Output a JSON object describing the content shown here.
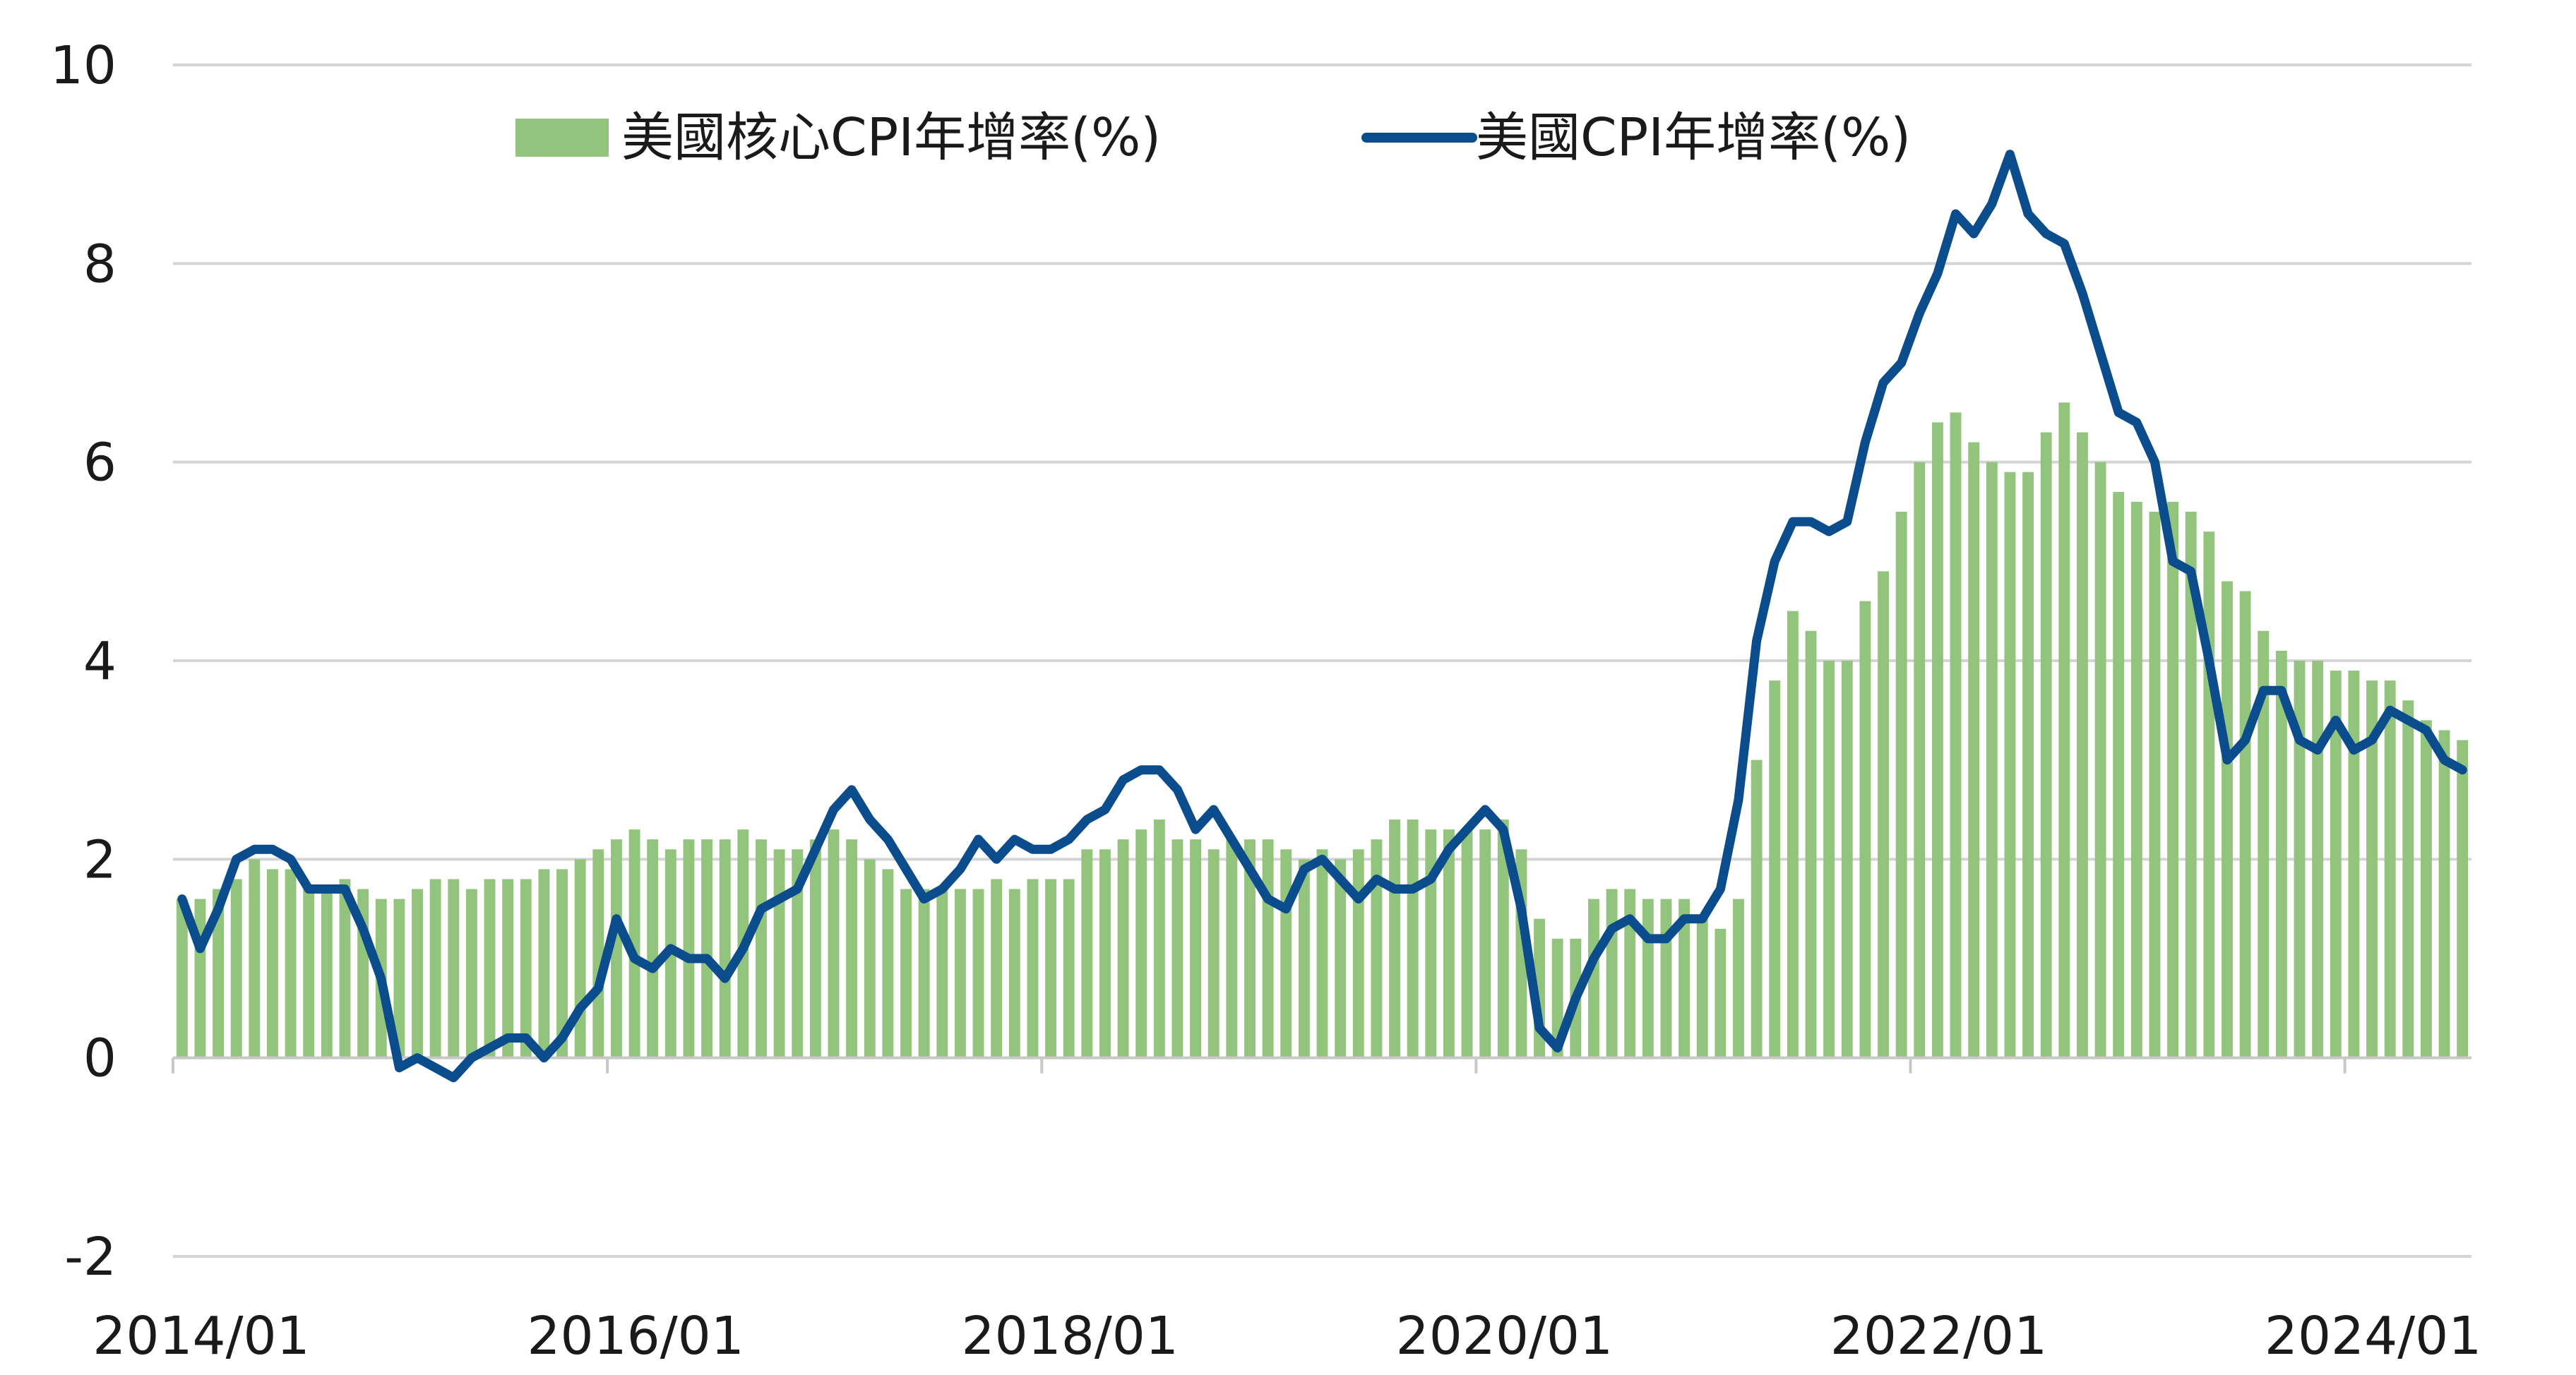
{
  "chart_data": {
    "type": "bar+line",
    "title": "",
    "xlabel": "",
    "ylabel": "",
    "ylim": [
      -2,
      10
    ],
    "yticks": [
      "-2",
      "0",
      "2",
      "4",
      "6",
      "8",
      "10"
    ],
    "grid": true,
    "legend_position": "top",
    "x_start": "2014/01",
    "x_end": "2024/08",
    "xticks": [
      {
        "date": "2014/01",
        "label": "2014/01"
      },
      {
        "date": "2016/01",
        "label": "2016/01"
      },
      {
        "date": "2018/01",
        "label": "2018/01"
      },
      {
        "date": "2020/01",
        "label": "2020/01"
      },
      {
        "date": "2022/01",
        "label": "2022/01"
      },
      {
        "date": "2024/01",
        "label": "2024/01"
      }
    ],
    "series": [
      {
        "name": "美國核心CPI年增率(%)",
        "type": "bar",
        "color": "#93c47d",
        "values": [
          1.6,
          1.6,
          1.7,
          1.8,
          2.0,
          1.9,
          1.9,
          1.7,
          1.7,
          1.8,
          1.7,
          1.6,
          1.6,
          1.7,
          1.8,
          1.8,
          1.7,
          1.8,
          1.8,
          1.8,
          1.9,
          1.9,
          2.0,
          2.1,
          2.2,
          2.3,
          2.2,
          2.1,
          2.2,
          2.2,
          2.2,
          2.3,
          2.2,
          2.1,
          2.1,
          2.2,
          2.3,
          2.2,
          2.0,
          1.9,
          1.7,
          1.7,
          1.7,
          1.7,
          1.7,
          1.8,
          1.7,
          1.8,
          1.8,
          1.8,
          2.1,
          2.1,
          2.2,
          2.3,
          2.4,
          2.2,
          2.2,
          2.1,
          2.2,
          2.2,
          2.2,
          2.1,
          2.0,
          2.1,
          2.0,
          2.1,
          2.2,
          2.4,
          2.4,
          2.3,
          2.3,
          2.3,
          2.3,
          2.4,
          2.1,
          1.4,
          1.2,
          1.2,
          1.6,
          1.7,
          1.7,
          1.6,
          1.6,
          1.6,
          1.4,
          1.3,
          1.6,
          3.0,
          3.8,
          4.5,
          4.3,
          4.0,
          4.0,
          4.6,
          4.9,
          5.5,
          6.0,
          6.4,
          6.5,
          6.2,
          6.0,
          5.9,
          5.9,
          6.3,
          6.6,
          6.3,
          6.0,
          5.7,
          5.6,
          5.5,
          5.6,
          5.5,
          5.3,
          4.8,
          4.7,
          4.3,
          4.1,
          4.0,
          4.0,
          3.9,
          3.9,
          3.8,
          3.8,
          3.6,
          3.4,
          3.3,
          3.2
        ]
      },
      {
        "name": "美國CPI年增率(%)",
        "type": "line",
        "color": "#0b4c8c",
        "values": [
          1.6,
          1.1,
          1.5,
          2.0,
          2.1,
          2.1,
          2.0,
          1.7,
          1.7,
          1.7,
          1.3,
          0.8,
          -0.1,
          0.0,
          -0.1,
          -0.2,
          0.0,
          0.1,
          0.2,
          0.2,
          0.0,
          0.2,
          0.5,
          0.7,
          1.4,
          1.0,
          0.9,
          1.1,
          1.0,
          1.0,
          0.8,
          1.1,
          1.5,
          1.6,
          1.7,
          2.1,
          2.5,
          2.7,
          2.4,
          2.2,
          1.9,
          1.6,
          1.7,
          1.9,
          2.2,
          2.0,
          2.2,
          2.1,
          2.1,
          2.2,
          2.4,
          2.5,
          2.8,
          2.9,
          2.9,
          2.7,
          2.3,
          2.5,
          2.2,
          1.9,
          1.6,
          1.5,
          1.9,
          2.0,
          1.8,
          1.6,
          1.8,
          1.7,
          1.7,
          1.8,
          2.1,
          2.3,
          2.5,
          2.3,
          1.5,
          0.3,
          0.1,
          0.6,
          1.0,
          1.3,
          1.4,
          1.2,
          1.2,
          1.4,
          1.4,
          1.7,
          2.6,
          4.2,
          5.0,
          5.4,
          5.4,
          5.3,
          5.4,
          6.2,
          6.8,
          7.0,
          7.5,
          7.9,
          8.5,
          8.3,
          8.6,
          9.1,
          8.5,
          8.3,
          8.2,
          7.7,
          7.1,
          6.5,
          6.4,
          6.0,
          5.0,
          4.9,
          4.0,
          3.0,
          3.2,
          3.7,
          3.7,
          3.2,
          3.1,
          3.4,
          3.1,
          3.2,
          3.5,
          3.4,
          3.3,
          3.0,
          2.9
        ]
      }
    ]
  }
}
